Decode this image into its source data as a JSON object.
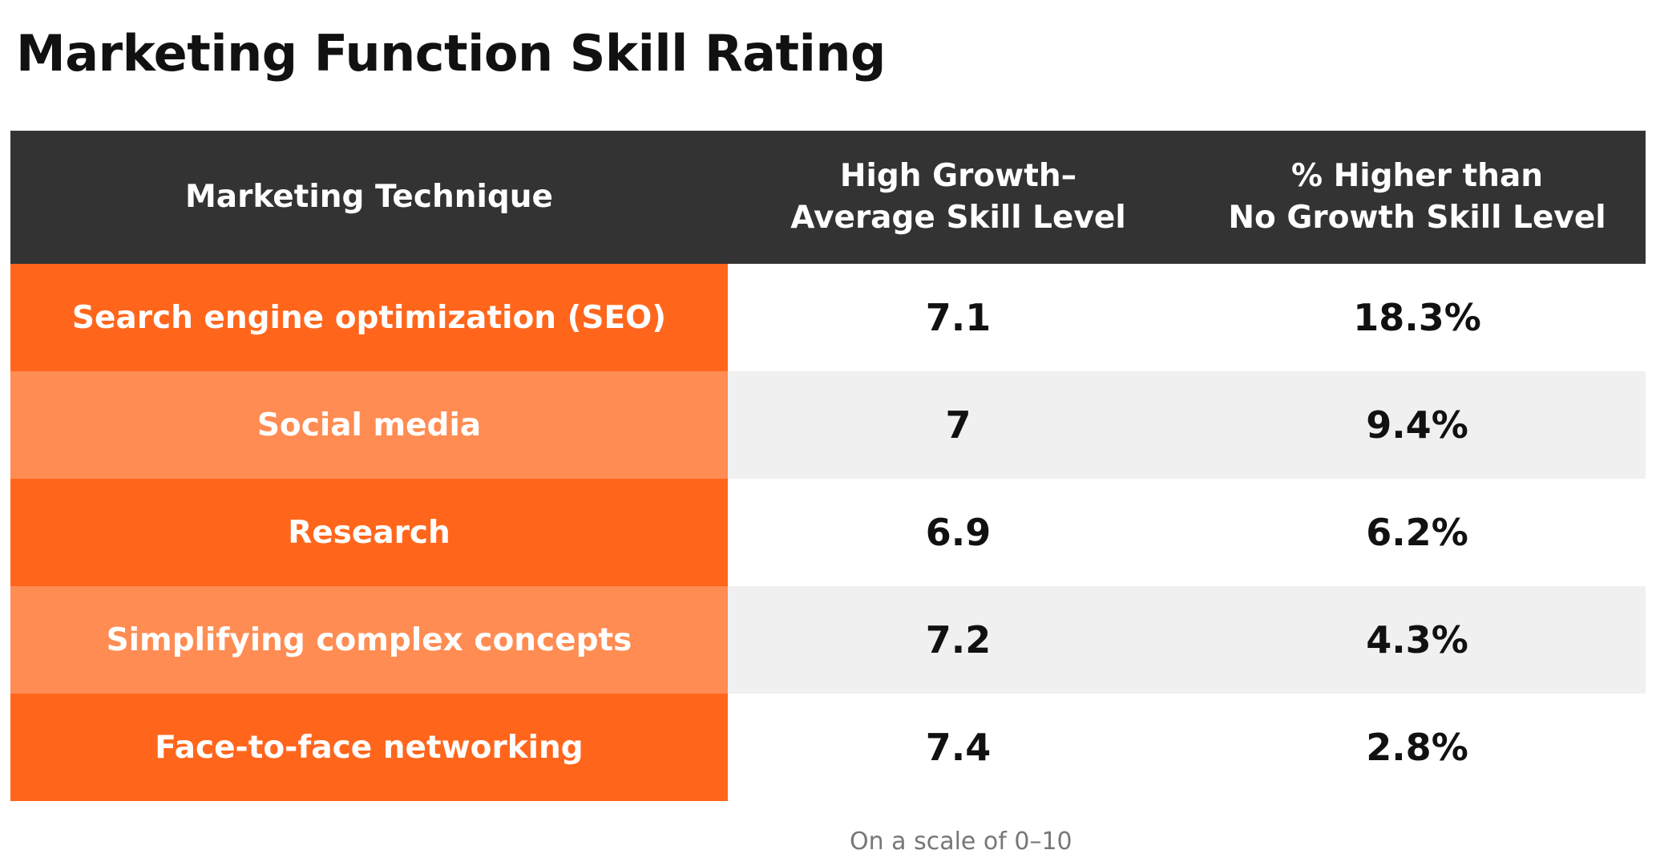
{
  "title": "Marketing Function Skill Rating",
  "footnote": "On a scale of 0–10",
  "colors": {
    "header_bg": "#333333",
    "technique_dark": "#FF661C",
    "technique_light": "#FF8C52",
    "row_white": "#FFFFFF",
    "row_gray": "#F0F0F0"
  },
  "chart_data": {
    "type": "table",
    "title": "Marketing Function Skill Rating",
    "columns": [
      "Marketing Technique",
      "High Growth–\nAverage Skill Level",
      "% Higher than\nNo Growth Skill Level"
    ],
    "rows": [
      {
        "technique": "Search engine optimization (SEO)",
        "skill": "7.1",
        "pct": "18.3%"
      },
      {
        "technique": "Social media",
        "skill": "7",
        "pct": "9.4%"
      },
      {
        "technique": "Research",
        "skill": "6.9",
        "pct": "6.2%"
      },
      {
        "technique": "Simplifying complex concepts",
        "skill": "7.2",
        "pct": "4.3%"
      },
      {
        "technique": "Face-to-face networking",
        "skill": "7.4",
        "pct": "2.8%"
      }
    ]
  }
}
